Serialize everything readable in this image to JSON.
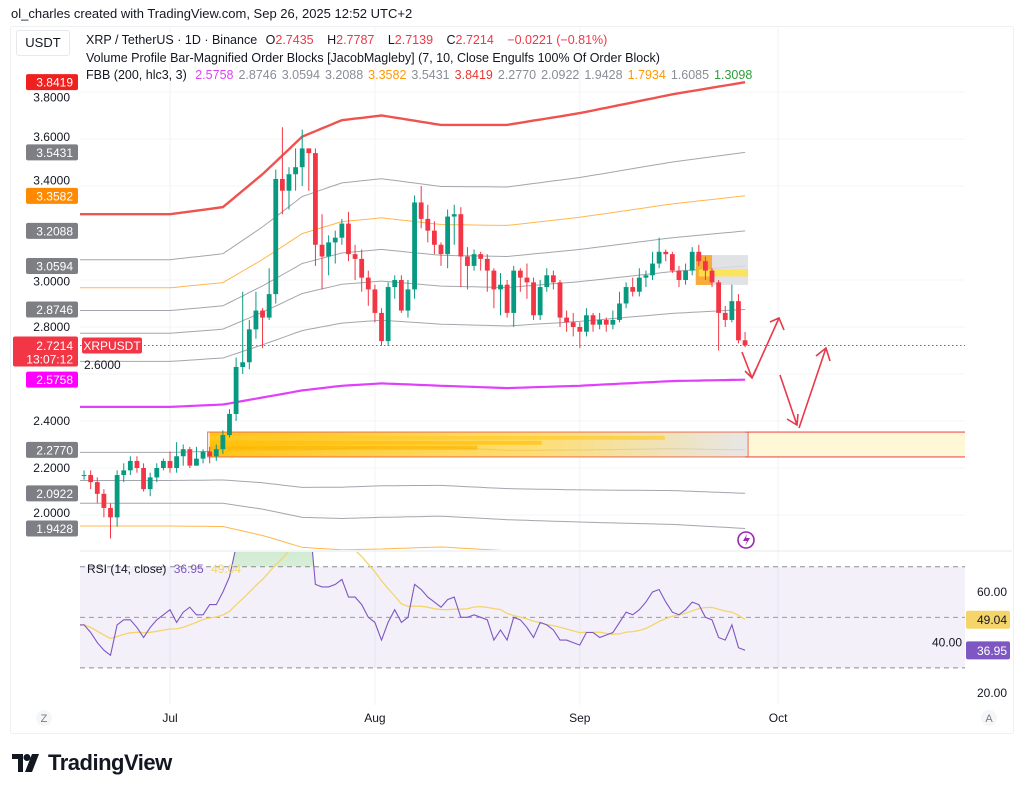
{
  "credit": "ol_charles created with TradingView.com, Sep 26, 2025 12:52 UTC+2",
  "currency_button": "USDT",
  "symbol_legend": {
    "title": "XRP / TetherUS · 1D · Binance",
    "open_label": "O",
    "open": "2.7435",
    "high_label": "H",
    "high": "2.7787",
    "low_label": "L",
    "low": "2.7139",
    "close_label": "C",
    "close": "2.7214",
    "change": "−0.0221 (−0.81%)",
    "color": "#f23645"
  },
  "indicator_legend": "Volume Profile Bar-Magnified Order Blocks [JacobMagleby] (7, 10, Close Engulfs 100% Of Order Block)",
  "fbb_legend": {
    "name": "FBB (200, hlc3, 3)",
    "values": [
      {
        "v": "2.5758",
        "color": "#e040fb"
      },
      {
        "v": "2.8746",
        "color": "#8a8d96"
      },
      {
        "v": "3.0594",
        "color": "#8a8d96"
      },
      {
        "v": "3.2088",
        "color": "#8a8d96"
      },
      {
        "v": "3.3582",
        "color": "#ff9800"
      },
      {
        "v": "3.5431",
        "color": "#8a8d96"
      },
      {
        "v": "3.8419",
        "color": "#e53935"
      },
      {
        "v": "2.2770",
        "color": "#8a8d96"
      },
      {
        "v": "2.0922",
        "color": "#8a8d96"
      },
      {
        "v": "1.9428",
        "color": "#8a8d96"
      },
      {
        "v": "1.7934",
        "color": "#ff9800"
      },
      {
        "v": "1.6085",
        "color": "#8a8d96"
      },
      {
        "v": "1.3098",
        "color": "#2e9d3a"
      }
    ]
  },
  "price_axis": {
    "ticks": [
      "3.8000",
      "3.6000",
      "3.4000",
      "3.0000",
      "2.8000",
      "2.6000",
      "2.4000",
      "2.2000",
      "2.0000"
    ],
    "badges": [
      {
        "v": "3.8419",
        "color": "#f0201e"
      },
      {
        "v": "3.5431",
        "color": "#7d7f85"
      },
      {
        "v": "3.3582",
        "color": "#ff8a00"
      },
      {
        "v": "3.2088",
        "color": "#7d7f85"
      },
      {
        "v": "3.0594",
        "color": "#7d7f85"
      },
      {
        "v": "2.8746",
        "color": "#7d7f85"
      },
      {
        "v": "2.5758",
        "color": "#ff00ff"
      },
      {
        "v": "2.2770",
        "color": "#7d7f85"
      },
      {
        "v": "2.0922",
        "color": "#7d7f85"
      },
      {
        "v": "1.9428",
        "color": "#7d7f85"
      }
    ],
    "last_price": "2.7214",
    "countdown": "13:07:12",
    "symbol_tag": "XRPUSDT",
    "last_color": "#f23645"
  },
  "time_axis": {
    "labels": [
      "Jul",
      "Aug",
      "Sep",
      "Oct"
    ],
    "left_button": "Z",
    "right_button": "A"
  },
  "rsi": {
    "legend_name": "RSI (14, close)",
    "value_label": "36.95",
    "ma_label": "49.04",
    "axis_ticks": [
      "60.00",
      "40.00",
      "20.00"
    ],
    "line_color": "#7e57c2",
    "ma_color": "#f5d56a",
    "overbought": 70,
    "oversold": 30,
    "middle": 50
  },
  "colors": {
    "up": "#089981",
    "down": "#f23645"
  },
  "chart_data": {
    "type": "candlestick",
    "x_range": [
      "2025-06-17",
      "2025-09-26"
    ],
    "ylim": [
      1.92,
      3.87
    ],
    "candles_ohlc": [
      [
        2.16,
        2.2,
        2.13,
        2.17
      ],
      [
        2.17,
        2.19,
        2.15,
        2.17
      ],
      [
        2.17,
        2.19,
        2.11,
        2.14
      ],
      [
        2.14,
        2.16,
        2.05,
        2.09
      ],
      [
        2.09,
        2.11,
        1.99,
        2.03
      ],
      [
        2.03,
        2.05,
        1.9,
        1.99
      ],
      [
        1.99,
        2.19,
        1.95,
        2.17
      ],
      [
        2.17,
        2.22,
        2.14,
        2.19
      ],
      [
        2.19,
        2.25,
        2.17,
        2.23
      ],
      [
        2.23,
        2.25,
        2.18,
        2.2
      ],
      [
        2.2,
        2.22,
        2.1,
        2.11
      ],
      [
        2.11,
        2.18,
        2.08,
        2.16
      ],
      [
        2.16,
        2.22,
        2.14,
        2.2
      ],
      [
        2.2,
        2.24,
        2.19,
        2.23
      ],
      [
        2.23,
        2.27,
        2.18,
        2.2
      ],
      [
        2.2,
        2.31,
        2.18,
        2.25
      ],
      [
        2.25,
        2.3,
        2.21,
        2.28
      ],
      [
        2.28,
        2.29,
        2.2,
        2.21
      ],
      [
        2.21,
        2.29,
        2.21,
        2.24
      ],
      [
        2.24,
        2.28,
        2.22,
        2.27
      ],
      [
        2.27,
        2.29,
        2.22,
        2.25
      ],
      [
        2.25,
        2.3,
        2.23,
        2.28
      ],
      [
        2.28,
        2.36,
        2.26,
        2.34
      ],
      [
        2.34,
        2.45,
        2.33,
        2.43
      ],
      [
        2.43,
        2.67,
        2.4,
        2.63
      ],
      [
        2.63,
        2.95,
        2.6,
        2.65
      ],
      [
        2.65,
        2.83,
        2.62,
        2.79
      ],
      [
        2.79,
        2.95,
        2.75,
        2.87
      ],
      [
        2.87,
        2.88,
        2.71,
        2.84
      ],
      [
        2.84,
        3.05,
        2.83,
        2.94
      ],
      [
        2.94,
        3.47,
        2.9,
        3.43
      ],
      [
        3.43,
        3.65,
        3.28,
        3.38
      ],
      [
        3.38,
        3.48,
        3.3,
        3.45
      ],
      [
        3.45,
        3.56,
        3.38,
        3.48
      ],
      [
        3.48,
        3.64,
        3.4,
        3.56
      ],
      [
        3.56,
        3.56,
        3.38,
        3.54
      ],
      [
        3.54,
        3.56,
        3.06,
        3.15
      ],
      [
        3.15,
        3.28,
        2.96,
        3.1
      ],
      [
        3.1,
        3.19,
        3.02,
        3.16
      ],
      [
        3.16,
        3.21,
        3.07,
        3.18
      ],
      [
        3.18,
        3.26,
        3.15,
        3.24
      ],
      [
        3.24,
        3.29,
        3.08,
        3.11
      ],
      [
        3.11,
        3.15,
        3.0,
        3.09
      ],
      [
        3.09,
        3.13,
        2.95,
        3.01
      ],
      [
        3.01,
        3.04,
        2.89,
        2.96
      ],
      [
        2.96,
        2.98,
        2.82,
        2.86
      ],
      [
        2.86,
        2.88,
        2.72,
        2.74
      ],
      [
        2.74,
        2.99,
        2.72,
        2.97
      ],
      [
        2.97,
        3.02,
        2.92,
        3.0
      ],
      [
        3.0,
        3.02,
        2.86,
        2.87
      ],
      [
        2.87,
        3.0,
        2.84,
        2.96
      ],
      [
        2.96,
        3.36,
        2.92,
        3.33
      ],
      [
        3.33,
        3.4,
        3.22,
        3.26
      ],
      [
        3.26,
        3.32,
        3.16,
        3.21
      ],
      [
        3.21,
        3.25,
        3.11,
        3.15
      ],
      [
        3.15,
        3.16,
        3.06,
        3.11
      ],
      [
        3.11,
        3.3,
        3.05,
        3.27
      ],
      [
        3.27,
        3.32,
        3.15,
        3.28
      ],
      [
        3.28,
        3.31,
        2.97,
        3.1
      ],
      [
        3.1,
        3.14,
        2.96,
        3.06
      ],
      [
        3.06,
        3.13,
        3.04,
        3.11
      ],
      [
        3.11,
        3.12,
        3.04,
        3.09
      ],
      [
        3.09,
        3.11,
        2.95,
        3.04
      ],
      [
        3.04,
        3.05,
        2.88,
        2.96
      ],
      [
        2.96,
        3.03,
        2.85,
        2.98
      ],
      [
        2.98,
        3.0,
        2.84,
        2.86
      ],
      [
        2.86,
        3.06,
        2.8,
        3.04
      ],
      [
        3.04,
        3.05,
        2.95,
        3.01
      ],
      [
        3.01,
        3.07,
        2.92,
        2.99
      ],
      [
        2.99,
        3.01,
        2.83,
        2.85
      ],
      [
        2.85,
        3.0,
        2.83,
        2.97
      ],
      [
        2.97,
        3.05,
        2.95,
        3.02
      ],
      [
        3.02,
        3.04,
        2.96,
        2.99
      ],
      [
        2.99,
        3.0,
        2.8,
        2.84
      ],
      [
        2.84,
        2.87,
        2.78,
        2.82
      ],
      [
        2.82,
        2.86,
        2.76,
        2.8
      ],
      [
        2.8,
        2.82,
        2.71,
        2.78
      ],
      [
        2.78,
        2.88,
        2.76,
        2.85
      ],
      [
        2.85,
        2.86,
        2.78,
        2.81
      ],
      [
        2.81,
        2.86,
        2.79,
        2.83
      ],
      [
        2.83,
        2.84,
        2.78,
        2.81
      ],
      [
        2.81,
        2.87,
        2.79,
        2.83
      ],
      [
        2.83,
        2.95,
        2.82,
        2.9
      ],
      [
        2.9,
        2.99,
        2.88,
        2.97
      ],
      [
        2.97,
        3.01,
        2.93,
        2.95
      ],
      [
        2.95,
        3.05,
        2.93,
        3.01
      ],
      [
        3.01,
        3.04,
        2.97,
        3.02
      ],
      [
        3.02,
        3.12,
        3.0,
        3.07
      ],
      [
        3.07,
        3.18,
        3.05,
        3.12
      ],
      [
        3.12,
        3.13,
        3.08,
        3.11
      ],
      [
        3.11,
        3.12,
        3.03,
        3.04
      ],
      [
        3.04,
        3.06,
        2.97,
        3.0
      ],
      [
        3.0,
        3.07,
        2.98,
        3.04
      ],
      [
        3.04,
        3.14,
        3.02,
        3.12
      ],
      [
        3.12,
        3.15,
        3.06,
        3.08
      ],
      [
        3.08,
        3.1,
        3.0,
        3.04
      ],
      [
        3.04,
        3.05,
        2.97,
        2.99
      ],
      [
        2.99,
        3.0,
        2.7,
        2.86
      ],
      [
        2.86,
        2.89,
        2.8,
        2.83
      ],
      [
        2.83,
        2.98,
        2.82,
        2.91
      ],
      [
        2.91,
        2.94,
        2.73,
        2.7435
      ],
      [
        2.7435,
        2.7787,
        2.7139,
        2.7214
      ]
    ],
    "fbb_basis_keypoints": [
      {
        "day": 0,
        "basis": 2.46,
        "width": 0.82
      },
      {
        "day": 14,
        "basis": 2.46,
        "width": 0.82
      },
      {
        "day": 22,
        "basis": 2.47,
        "width": 0.84
      },
      {
        "day": 28,
        "basis": 2.5,
        "width": 0.95
      },
      {
        "day": 34,
        "basis": 2.53,
        "width": 1.08
      },
      {
        "day": 40,
        "basis": 2.55,
        "width": 1.13
      },
      {
        "day": 46,
        "basis": 2.56,
        "width": 1.14
      },
      {
        "day": 55,
        "basis": 2.55,
        "width": 1.11
      },
      {
        "day": 65,
        "basis": 2.54,
        "width": 1.12
      },
      {
        "day": 76,
        "basis": 2.55,
        "width": 1.16
      },
      {
        "day": 90,
        "basis": 2.57,
        "width": 1.22
      },
      {
        "day": 101,
        "basis": 2.5758,
        "width": 1.2661
      }
    ],
    "fbb_ratios": [
      1,
      0.764,
      0.618,
      0.5,
      0.382,
      0.236,
      0,
      -0.236,
      -0.382,
      -0.5,
      -0.618,
      -0.764,
      -1
    ],
    "order_blocks": [
      {
        "type": "bullish",
        "from_day": 20,
        "top": 2.353,
        "bottom": 2.247,
        "extends_right": true
      },
      {
        "type": "bearish",
        "from_day": 94,
        "to_day": 101,
        "top": 3.106,
        "bottom": 2.979
      }
    ],
    "rsi_values": [
      47,
      47,
      44,
      40,
      37,
      35,
      47,
      49,
      49,
      46,
      42,
      46,
      49,
      51,
      53,
      48,
      52,
      54,
      51,
      51,
      55,
      55,
      60,
      66,
      78,
      80,
      85,
      88,
      86,
      89,
      93,
      90,
      91,
      92,
      93,
      92,
      63,
      62,
      62,
      63,
      65,
      58,
      58,
      55,
      50,
      48,
      41,
      48,
      53,
      48,
      50,
      63,
      61,
      58,
      56,
      54,
      57,
      58,
      50,
      50,
      51,
      50,
      49,
      41,
      45,
      41,
      50,
      49,
      46,
      42,
      48,
      47,
      45,
      41,
      41,
      40,
      39,
      44,
      44,
      42,
      43,
      44,
      48,
      52,
      51,
      53,
      56,
      60,
      61,
      56,
      52,
      51,
      53,
      56,
      55,
      50,
      49,
      42,
      41,
      47,
      38,
      36.95
    ],
    "rsi_ylim": [
      14,
      77
    ]
  }
}
